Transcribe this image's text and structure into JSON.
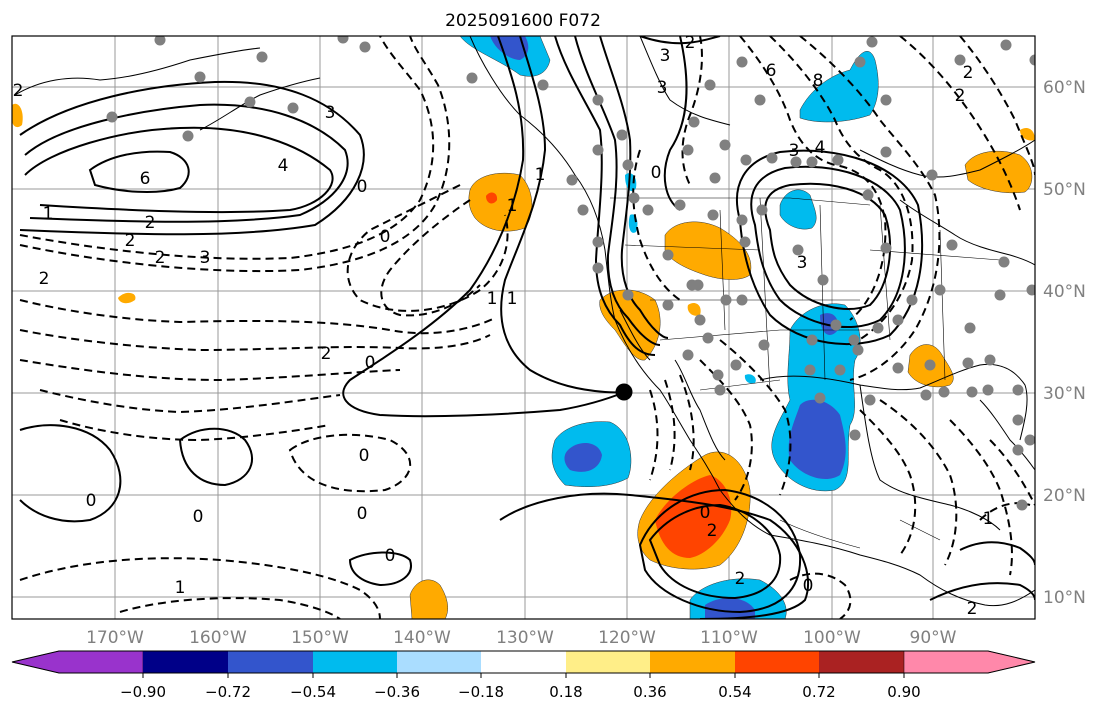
{
  "title": "2025091600 F072",
  "lon_labels": [
    "170°W",
    "160°W",
    "150°W",
    "140°W",
    "130°W",
    "120°W",
    "110°W",
    "100°W",
    "90°W"
  ],
  "lat_labels": [
    "60°N",
    "50°N",
    "40°N",
    "30°N",
    "20°N",
    "10°N"
  ],
  "colorbar": {
    "tick_labels": [
      "−0.90",
      "−0.72",
      "−0.54",
      "−0.36",
      "−0.18",
      "0.18",
      "0.36",
      "0.54",
      "0.72",
      "0.90"
    ],
    "colors": [
      "#9933cc",
      "#000088",
      "#3355cc",
      "#00bbee",
      "#aaddff",
      "#ffffff",
      "#ffee88",
      "#ffaa00",
      "#ff4400",
      "#aa2222",
      "#ff88aa"
    ]
  },
  "contour_labels": [
    "2",
    "3",
    "4",
    "6",
    "0",
    "1",
    "2",
    "2",
    "3",
    "0",
    "1",
    "2",
    "1",
    "2",
    "1",
    "0",
    "1",
    "0",
    "0",
    "2",
    "3",
    "2",
    "3",
    "6",
    "8",
    "2",
    "2",
    "3",
    "4",
    "3",
    "0",
    "0",
    "2",
    "2",
    "1",
    "0",
    "1",
    "0",
    "0",
    "0",
    "2"
  ],
  "marker": "black-dot-marker"
}
